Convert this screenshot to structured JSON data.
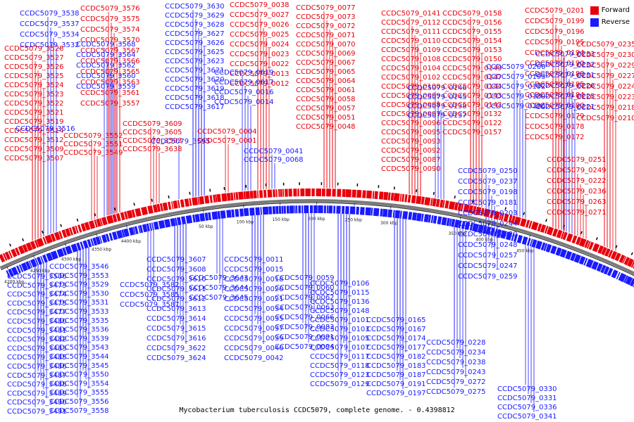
{
  "title": "Mycobacterium tuberculosis CCDC5079, complete genome. - 0.4398812",
  "legend": [
    {
      "label": "Forward",
      "color": "#e8000b"
    },
    {
      "label": "Reverse",
      "color": "#1a1aff"
    }
  ],
  "colors": {
    "forward": "#e8000b",
    "reverse": "#1a1aff",
    "backbone": "#7a7a7a"
  },
  "axis_ticks": [
    "4200 kbp",
    "4250 kbp",
    "4300 kbp",
    "4350 kbp",
    "4400 kbp",
    "50 kbp",
    "100 kbp",
    "150 kbp",
    "200 kbp",
    "250 kbp",
    "300 kbp",
    "350 kbp",
    "400 kbp",
    "450 kbp"
  ],
  "gene_labels": {
    "forward": [
      "CCDC5079_3576",
      "CCDC5079_3575",
      "CCDC5079_3574",
      "CCDC5079_3570",
      "CCDC5079_3567",
      "CCDC5079_3566",
      "CCDC5079_3565",
      "CCDC5079_3563",
      "CCDC5079_3561",
      "CCDC5079_3557",
      "CCDC5079_3552",
      "CCDC5079_3551",
      "CCDC5079_3549",
      "CCDC5079_3528",
      "CCDC5079_3527",
      "CCDC5079_3526",
      "CCDC5079_3525",
      "CCDC5079_3524",
      "CCDC5079_3523",
      "CCDC5079_3522",
      "CCDC5079_3521",
      "CCDC5079_3519",
      "CCDC5079_3514",
      "CCDC5079_3512",
      "CCDC5079_3509",
      "CCDC5079_3507",
      "CCDC5079_3609",
      "CCDC5079_3605",
      "CCDC5079_3593",
      "CCDC5079_3638",
      "CCDC5079_0038",
      "CCDC5079_0027",
      "CCDC5079_0026",
      "CCDC5079_0025",
      "CCDC5079_0024",
      "CCDC5079_0023",
      "CCDC5079_0022",
      "CCDC5079_0013",
      "CCDC5079_0012",
      "CCDC5079_0004",
      "CCDC5079_0001",
      "CCDC5079_0077",
      "CCDC5079_0073",
      "CCDC5079_0072",
      "CCDC5079_0071",
      "CCDC5079_0070",
      "CCDC5079_0069",
      "CCDC5079_0067",
      "CCDC5079_0065",
      "CCDC5079_0064",
      "CCDC5079_0061",
      "CCDC5079_0058",
      "CCDC5079_0057",
      "CCDC5079_0051",
      "CCDC5079_0048",
      "CCDC5079_0141",
      "CCDC5079_0112",
      "CCDC5079_0111",
      "CCDC5079_0110",
      "CCDC5079_0109",
      "CCDC5079_0108",
      "CCDC5079_0104",
      "CCDC5079_0102",
      "CCDC5079_0100",
      "CCDC5079_0099",
      "CCDC5079_0098",
      "CCDC5079_0097",
      "CCDC5079_0096",
      "CCDC5079_0095",
      "CCDC5079_0093",
      "CCDC5079_0092",
      "CCDC5079_0087",
      "CCDC5079_0090",
      "CCDC5079_0158",
      "CCDC5079_0156",
      "CCDC5079_0155",
      "CCDC5079_0154",
      "CCDC5079_0153",
      "CCDC5079_0150",
      "CCDC5079_0149",
      "CCDC5079_0147",
      "CCDC5079_0144",
      "CCDC5079_0143",
      "CCDC5079_0142",
      "CCDC5079_0132",
      "CCDC5079_0122",
      "CCDC5079_0157",
      "CCDC5079_0201",
      "CCDC5079_0199",
      "CCDC5079_0196",
      "CCDC5079_0195",
      "CCDC5079_0194",
      "CCDC5079_0190",
      "CCDC5079_0188",
      "CCDC5079_0185",
      "CCDC5079_0184",
      "CCDC5079_0180",
      "CCDC5079_0179",
      "CCDC5079_0178",
      "CCDC5079_0172",
      "CCDC5079_0235",
      "CCDC5079_0230",
      "CCDC5079_0229",
      "CCDC5079_0227",
      "CCDC5079_0224",
      "CCDC5079_0223",
      "CCDC5079_0218",
      "CCDC5079_0210",
      "CCDC5079_0251",
      "CCDC5079_0249",
      "CCDC5079_0222",
      "CCDC5079_0236",
      "CCDC5079_0263",
      "CCDC5079_0271"
    ],
    "reverse": [
      "CCDC5079_3538",
      "CCDC5079_3537",
      "CCDC5079_3534",
      "CCDC5079_3532",
      "CCDC5079_3516",
      "CCDC5079_3568",
      "CCDC5079_3564",
      "CCDC5079_3562",
      "CCDC5079_3560",
      "CCDC5079_3559",
      "CCDC5079_3630",
      "CCDC5079_3629",
      "CCDC5079_3628",
      "CCDC5079_3627",
      "CCDC5079_3626",
      "CCDC5079_3625",
      "CCDC5079_3623",
      "CCDC5079_3621",
      "CCDC5079_3620",
      "CCDC5079_3619",
      "CCDC5079_3618",
      "CCDC5079_3617",
      "CCDC5079_3595",
      "CCDC5079_0019",
      "CCDC5079_0017",
      "CCDC5079_0016",
      "CCDC5079_0014",
      "CCDC5079_0041",
      "CCDC5079_0068",
      "CCDC5079_0146",
      "CCDC5079_0145",
      "CCDC5079_0138",
      "CCDC5079_0137",
      "CCDC5079_0200",
      "CCDC5079_0193",
      "CCDC5079_0192",
      "CCDC5079_0189",
      "CCDC5079_0186",
      "CCDC5079_0233",
      "CCDC5079_0232",
      "CCDC5079_0231",
      "CCDC5079_0226",
      "CCDC5079_0225",
      "CCDC5079_0221",
      "CCDC5079_0250",
      "CCDC5079_0237",
      "CCDC5079_0198",
      "CCDC5079_0181",
      "CCDC5079_0203",
      "CCDC5079_0244",
      "CCDC5079_0220",
      "CCDC5079_0248",
      "CCDC5079_0257",
      "CCDC5079_0247",
      "CCDC5079_0259",
      "CCDC5079_3506",
      "CCDC5079_3473",
      "CCDC5079_3474",
      "CCDC5079_3475",
      "CCDC5079_3477",
      "CCDC5079_3480",
      "CCDC5079_3481",
      "CCDC5079_3482",
      "CCDC5079_3483",
      "CCDC5079_3485",
      "CCDC5079_3486",
      "CCDC5079_3487",
      "CCDC5079_3488",
      "CCDC5079_3489",
      "CCDC5079_3490",
      "CCDC5079_3491",
      "CCDC5079_3546",
      "CCDC5079_3553",
      "CCDC5079_3529",
      "CCDC5079_3530",
      "CCDC5079_3531",
      "CCDC5079_3533",
      "CCDC5079_3535",
      "CCDC5079_3536",
      "CCDC5079_3539",
      "CCDC5079_3543",
      "CCDC5079_3544",
      "CCDC5079_3545",
      "CCDC5079_3550",
      "CCDC5079_3554",
      "CCDC5079_3555",
      "CCDC5079_3556",
      "CCDC5079_3558",
      "CCDC5079_3582",
      "CCDC5079_3585",
      "CCDC5079_3587",
      "CCDC5079_3607",
      "CCDC5079_3608",
      "CCDC5079_3610",
      "CCDC5079_3611",
      "CCDC5079_3612",
      "CCDC5079_3613",
      "CCDC5079_3614",
      "CCDC5079_3615",
      "CCDC5079_3616",
      "CCDC5079_3622",
      "CCDC5079_3624",
      "CCDC5079_3643",
      "CCDC5079_3644",
      "CCDC5079_3645",
      "CCDC5079_0011",
      "CCDC5079_0015",
      "CCDC5079_0018",
      "CCDC5079_0020",
      "CCDC5079_0021",
      "CCDC5079_0034",
      "CCDC5079_0035",
      "CCDC5079_0037",
      "CCDC5079_0039",
      "CCDC5079_0040",
      "CCDC5079_0042",
      "CCDC5079_0059",
      "CCDC5079_0060",
      "CCDC5079_0062",
      "CCDC5079_0063",
      "CCDC5079_0066",
      "CCDC5079_0083",
      "CCDC5079_0091",
      "CCDC5079_0094",
      "CCDC5079_0106",
      "CCDC5079_0115",
      "CCDC5079_0136",
      "CCDC5079_0148",
      "CCDC5079_0101",
      "CCDC5079_0103",
      "CCDC5079_0105",
      "CCDC5079_0107",
      "CCDC5079_0117",
      "CCDC5079_0118",
      "CCDC5079_0123",
      "CCDC5079_0129",
      "CCDC5079_0165",
      "CCDC5079_0167",
      "CCDC5079_0174",
      "CCDC5079_0177",
      "CCDC5079_0182",
      "CCDC5079_0183",
      "CCDC5079_0187",
      "CCDC5079_0191",
      "CCDC5079_0197",
      "CCDC5079_0228",
      "CCDC5079_0234",
      "CCDC5079_0238",
      "CCDC5079_0243",
      "CCDC5079_0272",
      "CCDC5079_0275",
      "CCDC5079_0330",
      "CCDC5079_0331",
      "CCDC5079_0336",
      "CCDC5079_0341"
    ]
  }
}
